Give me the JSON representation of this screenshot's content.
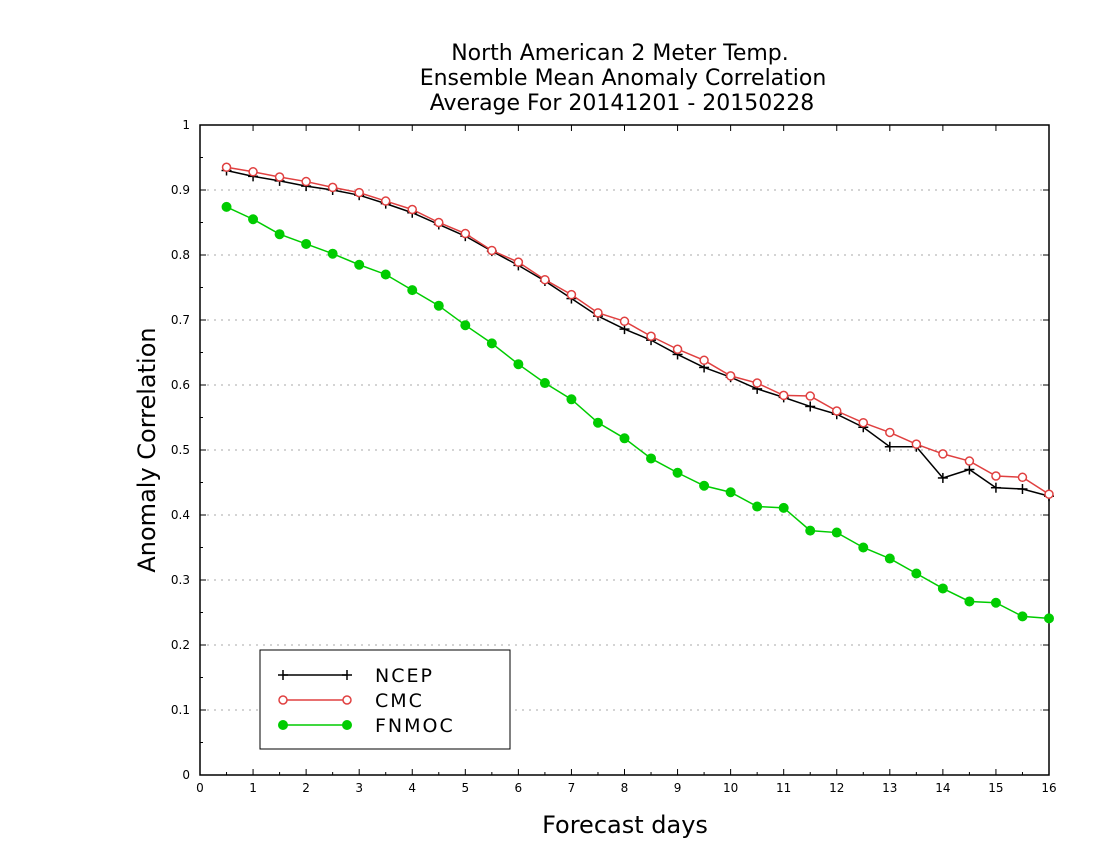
{
  "chart_data": {
    "type": "line",
    "title": [
      "North American 2 Meter Temp.",
      "Ensemble Mean Anomaly Correlation",
      "Average For 20141201 - 20150228"
    ],
    "xlabel": "Forecast days",
    "ylabel": "Anomaly Correlation",
    "xlim": [
      0,
      16
    ],
    "ylim": [
      0,
      1
    ],
    "xticks": [
      "0",
      "1",
      "2",
      "3",
      "4",
      "5",
      "6",
      "7",
      "8",
      "9",
      "10",
      "11",
      "12",
      "13",
      "14",
      "15",
      "16"
    ],
    "yticks": [
      "0",
      "0.1",
      "0.2",
      "0.3",
      "0.4",
      "0.5",
      "0.6",
      "0.7",
      "0.8",
      "0.9",
      "1"
    ],
    "grid": "horizontal dotted",
    "legend_position": "bottom-left",
    "x": [
      0.5,
      1,
      1.5,
      2,
      2.5,
      3,
      3.5,
      4,
      4.5,
      5,
      5.5,
      6,
      6.5,
      7,
      7.5,
      8,
      8.5,
      9,
      9.5,
      10,
      10.5,
      11,
      11.5,
      12,
      12.5,
      13,
      13.5,
      14,
      14.5,
      15,
      15.5,
      16
    ],
    "series": [
      {
        "name": "NCEP",
        "color": "#000000",
        "marker": "plus",
        "values": [
          0.93,
          0.921,
          0.914,
          0.906,
          0.9,
          0.892,
          0.879,
          0.865,
          0.847,
          0.829,
          0.806,
          0.784,
          0.76,
          0.733,
          0.706,
          0.686,
          0.669,
          0.647,
          0.627,
          0.612,
          0.594,
          0.581,
          0.567,
          0.555,
          0.535,
          0.505,
          0.505,
          0.457,
          0.47,
          0.442,
          0.44,
          0.429
        ]
      },
      {
        "name": "CMC",
        "color": "#e04040",
        "marker": "open-circle",
        "values": [
          0.935,
          0.928,
          0.92,
          0.913,
          0.904,
          0.896,
          0.883,
          0.87,
          0.85,
          0.833,
          0.807,
          0.789,
          0.762,
          0.739,
          0.711,
          0.698,
          0.675,
          0.655,
          0.638,
          0.614,
          0.603,
          0.584,
          0.583,
          0.56,
          0.542,
          0.527,
          0.509,
          0.494,
          0.483,
          0.46,
          0.458,
          0.432
        ]
      },
      {
        "name": "FNMOC",
        "color": "#00cc00",
        "marker": "filled-circle",
        "values": [
          0.874,
          0.855,
          0.832,
          0.817,
          0.802,
          0.785,
          0.77,
          0.746,
          0.722,
          0.692,
          0.664,
          0.632,
          0.603,
          0.578,
          0.542,
          0.518,
          0.487,
          0.465,
          0.445,
          0.435,
          0.413,
          0.411,
          0.376,
          0.373,
          0.35,
          0.333,
          0.31,
          0.287,
          0.267,
          0.265,
          0.244,
          0.241
        ]
      }
    ]
  }
}
